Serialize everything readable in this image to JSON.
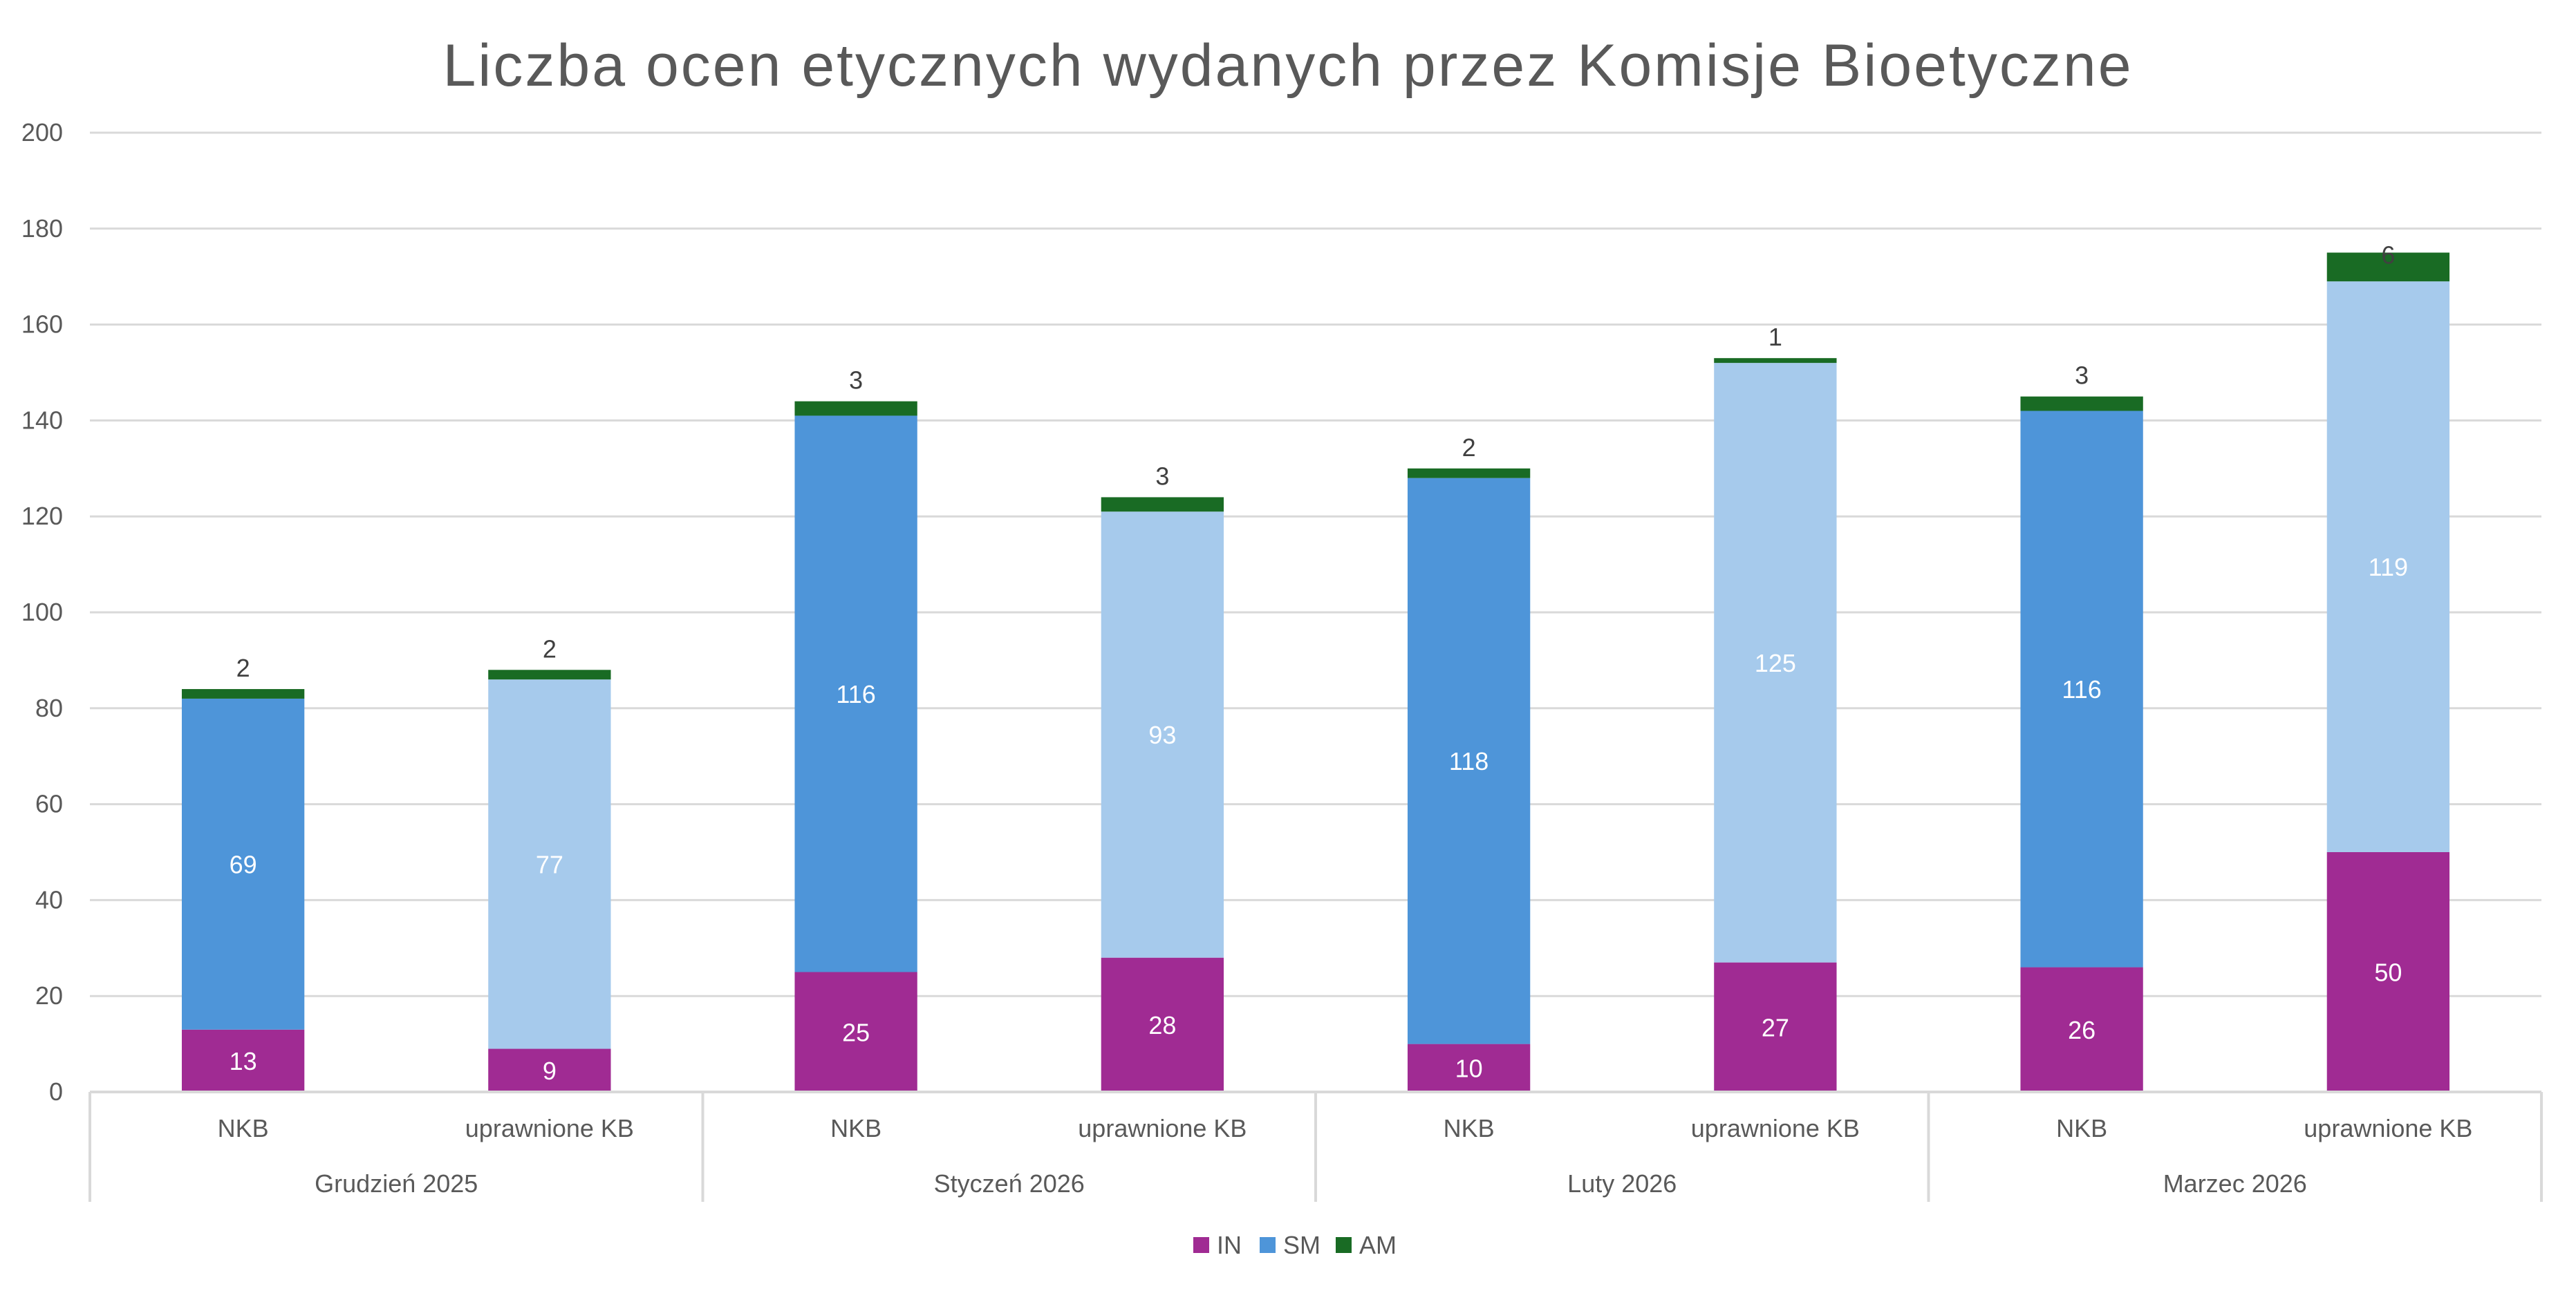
{
  "chart_data": {
    "type": "bar",
    "stacked": true,
    "title": "Liczba ocen etycznych wydanych przez Komisje Bioetyczne",
    "xlabel": "",
    "ylabel": "",
    "ylim": [
      0,
      200
    ],
    "yticks": [
      0,
      20,
      40,
      60,
      80,
      100,
      120,
      140,
      160,
      180,
      200
    ],
    "grid": true,
    "legend_position": "bottom",
    "groups": [
      {
        "label": "Grudzień 2025",
        "categories": [
          "NKB",
          "uprawnione KB"
        ]
      },
      {
        "label": "Styczeń 2026",
        "categories": [
          "NKB",
          "uprawnione KB"
        ]
      },
      {
        "label": "Luty 2026",
        "categories": [
          "NKB",
          "uprawnione KB"
        ]
      },
      {
        "label": "Marzec 2026",
        "categories": [
          "NKB",
          "uprawnione KB"
        ]
      }
    ],
    "categories": [
      "NKB",
      "uprawnione KB",
      "NKB",
      "uprawnione KB",
      "NKB",
      "uprawnione KB",
      "NKB",
      "uprawnione KB"
    ],
    "series": [
      {
        "name": "IN",
        "color": "#A02B93",
        "values": [
          13,
          9,
          25,
          28,
          10,
          27,
          26,
          50
        ]
      },
      {
        "name": "SM",
        "color": "#4E95D9",
        "alt_color": "#A6CAEC",
        "values": [
          69,
          77,
          116,
          93,
          118,
          125,
          116,
          119
        ]
      },
      {
        "name": "AM",
        "color": "#196B24",
        "values": [
          2,
          2,
          3,
          3,
          2,
          1,
          3,
          6
        ]
      }
    ],
    "label_colors": {
      "inside": "#FFFFFF",
      "top": "#404040"
    },
    "text_color": "#595959",
    "grid_color": "#D9D9D9"
  }
}
